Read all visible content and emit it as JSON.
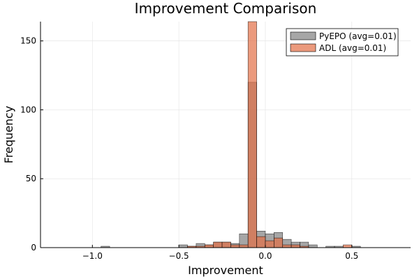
{
  "chart_data": {
    "type": "bar",
    "title": "Improvement Comparison",
    "xlabel": "Improvement",
    "ylabel": "Frequency",
    "xlim": [
      -1.3,
      0.84
    ],
    "ylim": [
      0,
      164
    ],
    "x_ticks": [
      {
        "value": -1.0,
        "label": "−1.0"
      },
      {
        "value": -0.5,
        "label": "−0.5"
      },
      {
        "value": 0.0,
        "label": "0.0"
      },
      {
        "value": 0.5,
        "label": "0.5"
      }
    ],
    "y_ticks": [
      {
        "value": 0,
        "label": "0"
      },
      {
        "value": 50,
        "label": "50"
      },
      {
        "value": 100,
        "label": "100"
      },
      {
        "value": 150,
        "label": "150"
      }
    ],
    "grid": true,
    "legend_position": "top-right",
    "bin_width": 0.05,
    "series": [
      {
        "name": "PyEPO (avg=0.01)",
        "color": "#808080",
        "opacity": 0.7,
        "bins": [
          {
            "x0": -0.95,
            "count": 1
          },
          {
            "x0": -0.5,
            "count": 2
          },
          {
            "x0": -0.45,
            "count": 1
          },
          {
            "x0": -0.4,
            "count": 3
          },
          {
            "x0": -0.35,
            "count": 2
          },
          {
            "x0": -0.3,
            "count": 4
          },
          {
            "x0": -0.25,
            "count": 4
          },
          {
            "x0": -0.2,
            "count": 3
          },
          {
            "x0": -0.15,
            "count": 10
          },
          {
            "x0": -0.1,
            "count": 120
          },
          {
            "x0": -0.05,
            "count": 12
          },
          {
            "x0": 0.0,
            "count": 10
          },
          {
            "x0": 0.05,
            "count": 11
          },
          {
            "x0": 0.1,
            "count": 6
          },
          {
            "x0": 0.15,
            "count": 4
          },
          {
            "x0": 0.2,
            "count": 4
          },
          {
            "x0": 0.25,
            "count": 2
          },
          {
            "x0": 0.35,
            "count": 1
          },
          {
            "x0": 0.4,
            "count": 1
          },
          {
            "x0": 0.5,
            "count": 1
          }
        ]
      },
      {
        "name": "ADL (avg=0.01)",
        "color": "#e26f46",
        "opacity": 0.7,
        "bins": [
          {
            "x0": -0.45,
            "count": 1
          },
          {
            "x0": -0.4,
            "count": 1
          },
          {
            "x0": -0.35,
            "count": 2
          },
          {
            "x0": -0.3,
            "count": 4
          },
          {
            "x0": -0.25,
            "count": 4
          },
          {
            "x0": -0.2,
            "count": 2
          },
          {
            "x0": -0.15,
            "count": 2
          },
          {
            "x0": -0.1,
            "count": 164
          },
          {
            "x0": -0.05,
            "count": 8
          },
          {
            "x0": 0.0,
            "count": 5
          },
          {
            "x0": 0.05,
            "count": 7
          },
          {
            "x0": 0.1,
            "count": 2
          },
          {
            "x0": 0.15,
            "count": 2
          },
          {
            "x0": 0.2,
            "count": 1
          },
          {
            "x0": 0.45,
            "count": 2
          }
        ]
      }
    ]
  }
}
